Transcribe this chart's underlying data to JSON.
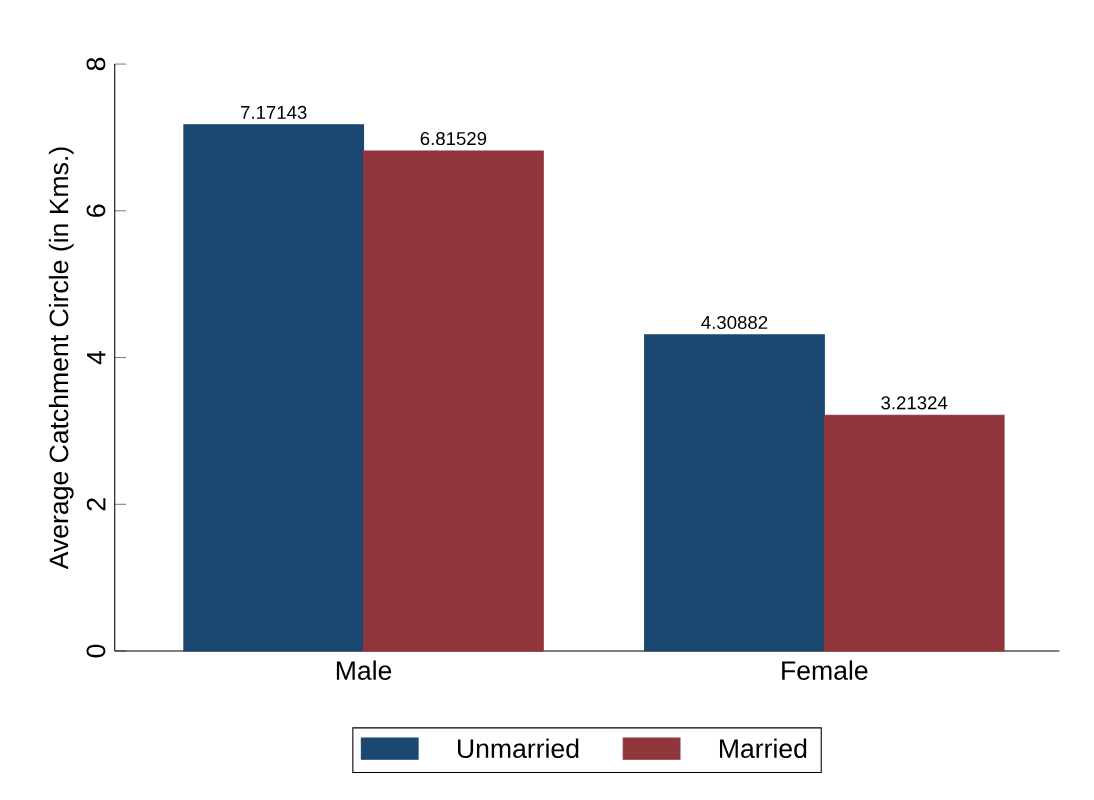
{
  "chart_data": {
    "type": "bar",
    "ylabel": "Average Catchment Circle (in Kms.)",
    "categories": [
      "Male",
      "Female"
    ],
    "series": [
      {
        "name": "Unmarried",
        "color": "#1a476f",
        "values": [
          7.17143,
          4.30882
        ]
      },
      {
        "name": "Married",
        "color": "#90353b",
        "values": [
          6.81529,
          3.21324
        ]
      }
    ],
    "ylim": [
      0,
      8
    ],
    "yticks": [
      0,
      2,
      4,
      6,
      8
    ],
    "grid": false,
    "legend": "bottom",
    "data_labels": true
  }
}
